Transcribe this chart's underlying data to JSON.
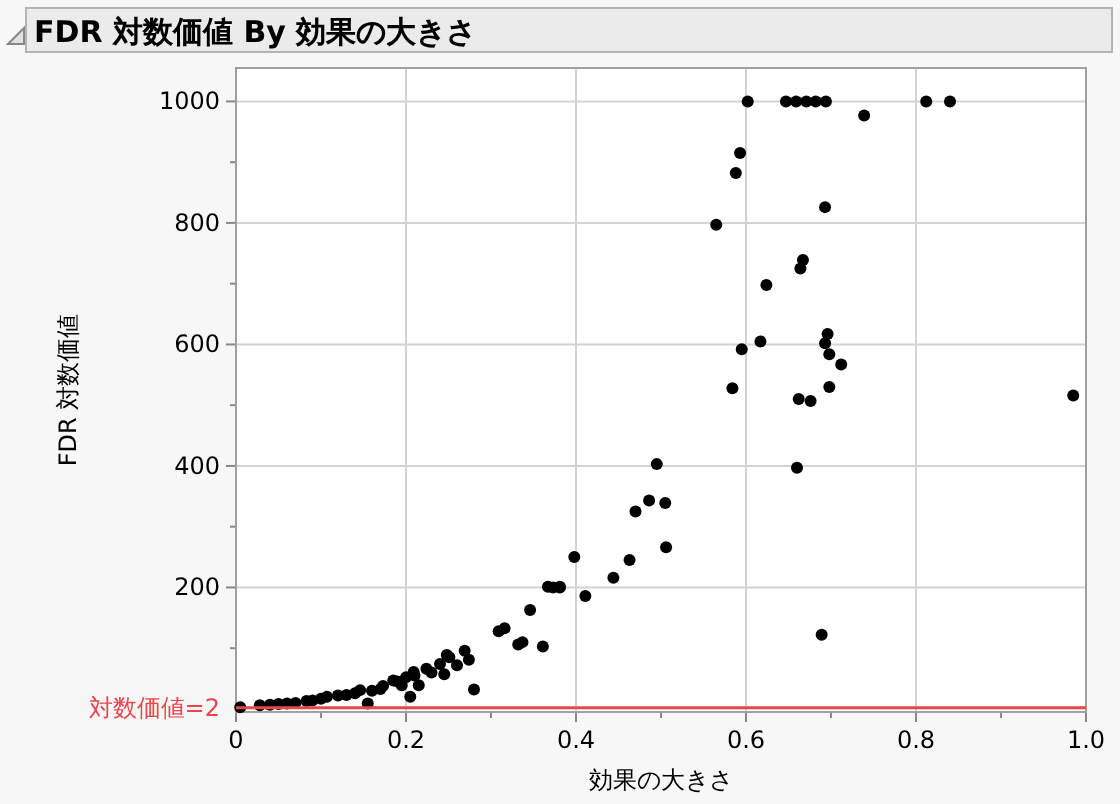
{
  "chart_data": {
    "type": "scatter",
    "title": "FDR 対数価値 By 効果の大きさ",
    "xlabel": "効果の大きさ",
    "ylabel": "FDR 対数価値",
    "xlim": [
      0,
      1
    ],
    "ylim": [
      -5,
      1055
    ],
    "xticks": [
      0,
      {
        "value": 0.1,
        "label": null
      },
      0.2,
      {
        "value": 0.3,
        "label": null
      },
      0.4,
      {
        "value": 0.5,
        "label": null
      },
      0.6,
      {
        "value": 0.7,
        "label": null
      },
      0.8,
      {
        "value": 0.9,
        "label": null
      },
      {
        "value": 1,
        "label": "1.0"
      }
    ],
    "yticks": [
      {
        "value": 100,
        "label": null
      },
      200,
      {
        "value": 300,
        "label": null
      },
      400,
      {
        "value": 500,
        "label": null
      },
      600,
      {
        "value": 700,
        "label": null
      },
      800,
      {
        "value": 900,
        "label": null
      },
      1000
    ],
    "grid": true,
    "marker": "circle",
    "ref_lines": [
      {
        "axis": "y",
        "value": 2,
        "label": "対数価値=2",
        "color": "#e8464c"
      }
    ],
    "series": [
      {
        "color": "#000000",
        "x": [
          0.602,
          0.647,
          0.659,
          0.671,
          0.682,
          0.694,
          0.739,
          0.812,
          0.84,
          0.617,
          0.595,
          0.584,
          0.696,
          0.693,
          0.698,
          0.712,
          0.698,
          0.662,
          0.676,
          0.66,
          0.689,
          0.495,
          0.486,
          0.47,
          0.505,
          0.506,
          0.463,
          0.444,
          0.398,
          0.381,
          0.411,
          0.693,
          0.667,
          0.664,
          0.985,
          0.565,
          0.588,
          0.593,
          0.624,
          0.346,
          0.367,
          0.373,
          0.381,
          0.316,
          0.309,
          0.337,
          0.332,
          0.361,
          0.269,
          0.274,
          0.28,
          0.248,
          0.251,
          0.24,
          0.245,
          0.224,
          0.209,
          0.215,
          0.205,
          0.195,
          0.185,
          0.173,
          0.155,
          0.146,
          0.13,
          0.107,
          0.083,
          0.06,
          0.028,
          0.005,
          0.04,
          0.05,
          0.07,
          0.09,
          0.1,
          0.12,
          0.14,
          0.16,
          0.17,
          0.19,
          0.2,
          0.21,
          0.23,
          0.26
        ],
        "values": [
          1000,
          1000,
          1000,
          1000,
          1000,
          1000,
          977,
          1000,
          1000,
          605,
          592,
          528,
          617,
          602,
          584,
          567,
          530,
          510,
          507,
          397,
          122,
          403,
          343,
          325,
          339,
          266,
          245,
          216,
          250,
          200,
          186,
          826,
          739,
          725,
          516,
          797,
          882,
          915,
          698,
          163,
          201,
          200,
          201,
          133,
          128,
          110,
          106,
          103,
          96,
          81,
          32,
          89,
          85,
          74,
          57,
          66,
          61,
          39,
          20,
          39,
          47,
          38,
          9,
          31,
          23,
          20,
          13,
          9,
          6,
          3,
          7,
          8,
          10,
          14,
          17,
          22,
          26,
          30,
          33,
          45,
          52,
          55,
          60,
          72
        ]
      }
    ]
  }
}
